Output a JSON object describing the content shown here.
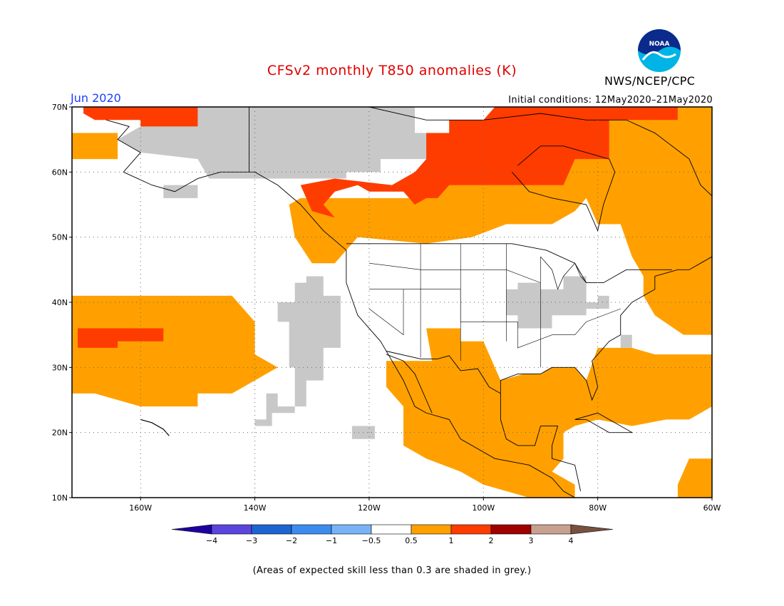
{
  "title": "CFSv2 monthly T850 anomalies (K)",
  "forecast_month": "Jun 2020",
  "initial_conditions": "Initial conditions: 12May2020–21May2020",
  "agency": "NWS/NCEP/CPC",
  "logo_text": "NOAA",
  "footnote": "(Areas of expected skill less than 0.3 are shaded in grey.)",
  "map": {
    "lon_range": [
      -172,
      -60
    ],
    "lat_range": [
      10,
      70
    ],
    "lat_ticks": [
      {
        "value": 70,
        "label": "70N"
      },
      {
        "value": 60,
        "label": "60N"
      },
      {
        "value": 50,
        "label": "50N"
      },
      {
        "value": 40,
        "label": "40N"
      },
      {
        "value": 30,
        "label": "30N"
      },
      {
        "value": 20,
        "label": "20N"
      },
      {
        "value": 10,
        "label": "10N"
      }
    ],
    "lon_ticks": [
      {
        "value": -160,
        "label": "160W"
      },
      {
        "value": -140,
        "label": "140W"
      },
      {
        "value": -120,
        "label": "120W"
      },
      {
        "value": -100,
        "label": "100W"
      },
      {
        "value": -80,
        "label": "80W"
      },
      {
        "value": -60,
        "label": "60W"
      }
    ],
    "grid": "dotted",
    "colors": {
      "grey": "#c8c8c8",
      "orange": "#ffa000",
      "red": "#ff3c00",
      "coast": "#000000"
    }
  },
  "legend": {
    "labels": [
      "−4",
      "−3",
      "−2",
      "−1",
      "−0.5",
      "0.5",
      "1",
      "2",
      "3",
      "4"
    ],
    "colors": [
      "#1e00a0",
      "#5a46dc",
      "#1e64d2",
      "#3c8cf0",
      "#78b4f5",
      "#ffffff",
      "#ffa000",
      "#ff3c00",
      "#a00000",
      "#c8a090",
      "#785040"
    ]
  }
}
